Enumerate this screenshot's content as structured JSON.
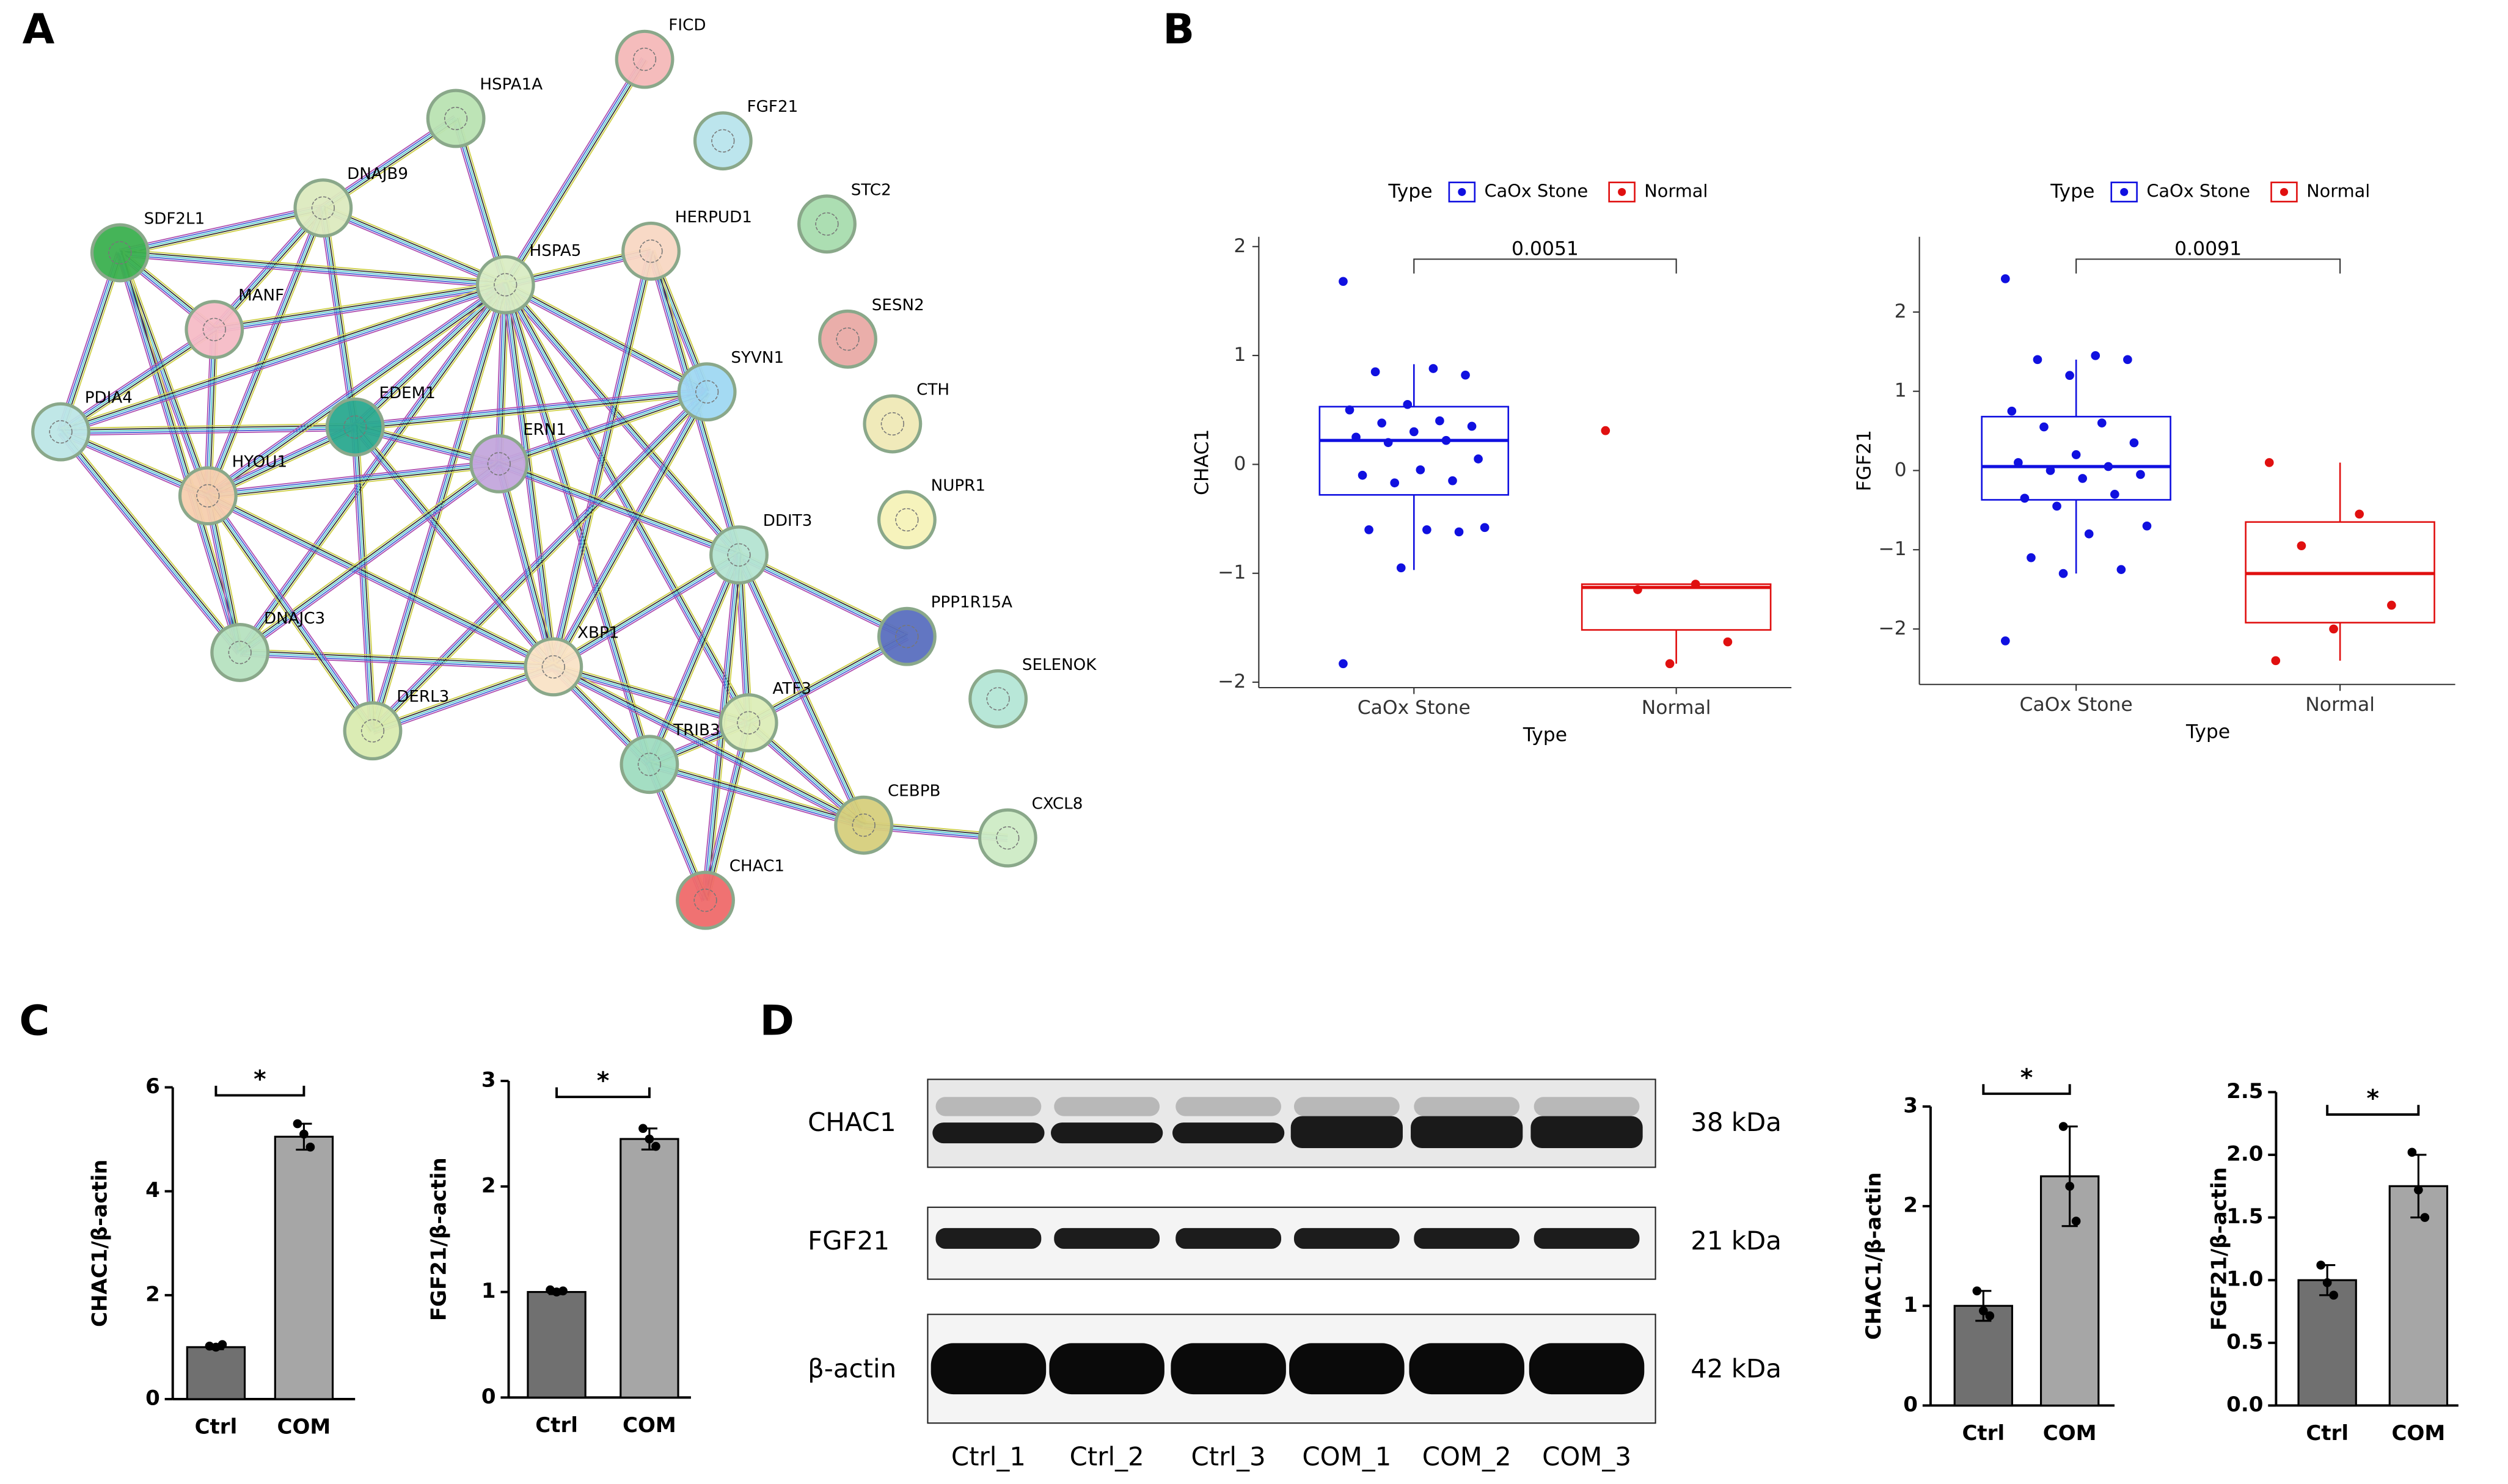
{
  "panels": [
    "A",
    "B",
    "C",
    "D"
  ],
  "network": {
    "nodes": [
      "FICD",
      "HSPA1A",
      "FGF21",
      "DNAJB9",
      "STC2",
      "SDF2L1",
      "HERPUD1",
      "HSPA5",
      "MANF",
      "SESN2",
      "PDIA4",
      "EDEM1",
      "SYVN1",
      "CTH",
      "ERN1",
      "HYOU1",
      "NUPR1",
      "DDIT3",
      "PPP1R15A",
      "DNAJC3",
      "XBP1",
      "SELENOK",
      "DERL3",
      "ATF3",
      "TRIB3",
      "CEBPB",
      "CXCL8",
      "CHAC1"
    ]
  },
  "blot": {
    "rows": [
      {
        "label": "CHAC1",
        "size": "38 kDa"
      },
      {
        "label": "FGF21",
        "size": "21 kDa"
      },
      {
        "label": "β-actin",
        "size": "42 kDa"
      }
    ],
    "lanes": [
      "Ctrl_1",
      "Ctrl_2",
      "Ctrl_3",
      "COM_1",
      "COM_2",
      "COM_3"
    ]
  },
  "chart_data": [
    {
      "type": "box",
      "y_label": "CHAC1",
      "x_label": "Type",
      "legend_title": "Type",
      "p_value": 0.0051,
      "categories": [
        "CaOx Stone",
        "Normal"
      ],
      "ylim": [
        -2.05,
        2.09
      ],
      "yticks": [
        {
          "value": -2,
          "label": "−2"
        },
        {
          "value": -1,
          "label": "−1"
        },
        0,
        1,
        2
      ],
      "series": [
        {
          "name": "CaOx Stone",
          "color": "#1010e0",
          "min": -0.97,
          "q1": -0.28,
          "median": 0.22,
          "q3": 0.53,
          "max": 0.92,
          "points": [
            1.68,
            0.88,
            0.85,
            0.82,
            0.55,
            0.5,
            0.4,
            0.38,
            0.35,
            0.3,
            0.25,
            0.22,
            0.2,
            0.05,
            -0.05,
            -0.1,
            -0.15,
            -0.17,
            -0.58,
            -0.6,
            -0.6,
            -0.62,
            -0.95,
            -1.83
          ]
        },
        {
          "name": "Normal",
          "color": "#e01010",
          "min": -1.83,
          "q1": -1.52,
          "median": -1.13,
          "q3": -1.1,
          "max": -1.1,
          "points": [
            0.31,
            -1.1,
            -1.15,
            -1.63,
            -1.83
          ]
        }
      ]
    },
    {
      "type": "box",
      "y_label": "FGF21",
      "x_label": "Type",
      "legend_title": "Type",
      "p_value": 0.0091,
      "categories": [
        "CaOx Stone",
        "Normal"
      ],
      "ylim": [
        -2.7,
        2.95
      ],
      "yticks": [
        {
          "value": -2,
          "label": "−2"
        },
        {
          "value": -1,
          "label": "−1"
        },
        0,
        1,
        2
      ],
      "series": [
        {
          "name": "CaOx Stone",
          "color": "#1010e0",
          "min": -1.3,
          "q1": -0.37,
          "median": 0.05,
          "q3": 0.68,
          "max": 1.4,
          "points": [
            2.42,
            1.45,
            1.4,
            1.4,
            1.2,
            0.75,
            0.6,
            0.55,
            0.35,
            0.2,
            0.1,
            0.05,
            0.0,
            -0.05,
            -0.1,
            -0.35,
            -0.3,
            -0.45,
            -0.7,
            -0.8,
            -1.1,
            -1.25,
            -1.3,
            -2.15
          ]
        },
        {
          "name": "Normal",
          "color": "#e01010",
          "min": -2.4,
          "q1": -1.92,
          "median": -1.3,
          "q3": -0.65,
          "max": 0.1,
          "points": [
            0.1,
            -0.55,
            -0.95,
            -1.7,
            -2.0,
            -2.4
          ]
        }
      ]
    },
    {
      "type": "bar",
      "y_label": "CHAC1/β-actin",
      "significance": "*",
      "categories": [
        "Ctrl",
        "COM"
      ],
      "values": [
        1.0,
        5.05
      ],
      "errors": [
        0.04,
        0.25
      ],
      "points": [
        [
          1.02,
          1.0,
          1.05
        ],
        [
          5.3,
          5.1,
          4.85
        ]
      ],
      "colors": [
        "#707070",
        "#a6a6a6"
      ],
      "ylim": [
        0,
        6
      ],
      "yticks": [
        0,
        2,
        4,
        6
      ]
    },
    {
      "type": "bar",
      "y_label": "FGF21/β-actin",
      "significance": "*",
      "categories": [
        "Ctrl",
        "COM"
      ],
      "values": [
        1.0,
        2.45
      ],
      "errors": [
        0.02,
        0.1
      ],
      "points": [
        [
          1.02,
          1.0,
          1.01
        ],
        [
          2.55,
          2.45,
          2.38
        ]
      ],
      "colors": [
        "#707070",
        "#a6a6a6"
      ],
      "ylim": [
        0,
        3
      ],
      "yticks": [
        0,
        1,
        2,
        3
      ]
    },
    {
      "type": "bar",
      "y_label": "CHAC1/β-actin",
      "significance": "*",
      "categories": [
        "Ctrl",
        "COM"
      ],
      "values": [
        1.0,
        2.3
      ],
      "errors": [
        0.15,
        0.5
      ],
      "points": [
        [
          1.15,
          0.95,
          0.9
        ],
        [
          2.8,
          2.2,
          1.85
        ]
      ],
      "colors": [
        "#707070",
        "#a6a6a6"
      ],
      "ylim": [
        0,
        3
      ],
      "yticks": [
        0,
        1,
        2,
        3
      ]
    },
    {
      "type": "bar",
      "y_label": "FGF21/β-actin",
      "significance": "*",
      "categories": [
        "Ctrl",
        "COM"
      ],
      "values": [
        1.0,
        1.75
      ],
      "errors": [
        0.12,
        0.25
      ],
      "points": [
        [
          1.12,
          0.98,
          0.88
        ],
        [
          2.02,
          1.72,
          1.5
        ]
      ],
      "colors": [
        "#707070",
        "#a6a6a6"
      ],
      "ylim": [
        0,
        2.5
      ],
      "yticks": [
        {
          "value": 0,
          "label": "0.0"
        },
        0.5,
        {
          "value": 1,
          "label": "1.0"
        },
        1.5,
        {
          "value": 2,
          "label": "2.0"
        },
        2.5
      ]
    }
  ]
}
